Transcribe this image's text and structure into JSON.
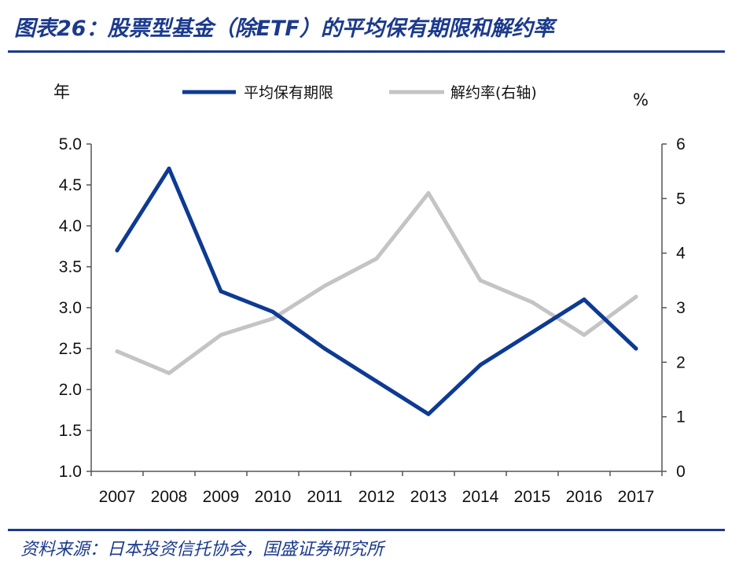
{
  "header": {
    "title": "图表26：股票型基金（除ETF）的平均保有期限和解约率"
  },
  "footer": {
    "source": "资料来源：日本投资信托协会，国盛证券研究所"
  },
  "colors": {
    "title": "#1b3a8c",
    "series1": "#0d3a93",
    "series2": "#c4c4c4"
  },
  "chart_data": {
    "type": "line",
    "categories": [
      "2007",
      "2008",
      "2009",
      "2010",
      "2011",
      "2012",
      "2013",
      "2014",
      "2015",
      "2016",
      "2017"
    ],
    "series": [
      {
        "name": "平均保有期限",
        "axis": "left",
        "values": [
          3.7,
          4.7,
          3.2,
          2.95,
          2.5,
          2.1,
          1.7,
          2.3,
          2.7,
          3.1,
          2.5
        ]
      },
      {
        "name": "解约率(右轴)",
        "axis": "right",
        "values": [
          2.2,
          1.8,
          2.5,
          2.8,
          3.4,
          3.9,
          5.1,
          3.5,
          3.1,
          2.5,
          3.2
        ]
      }
    ],
    "y_left": {
      "unit": "年",
      "ylim": [
        1.0,
        5.0
      ],
      "ticks": [
        "1.0",
        "1.5",
        "2.0",
        "2.5",
        "3.0",
        "3.5",
        "4.0",
        "4.5",
        "5.0"
      ]
    },
    "y_right": {
      "unit": "%",
      "ylim": [
        0,
        6
      ],
      "ticks": [
        "0",
        "1",
        "2",
        "3",
        "4",
        "5",
        "6"
      ]
    },
    "legend_position": "top",
    "grid": false
  }
}
